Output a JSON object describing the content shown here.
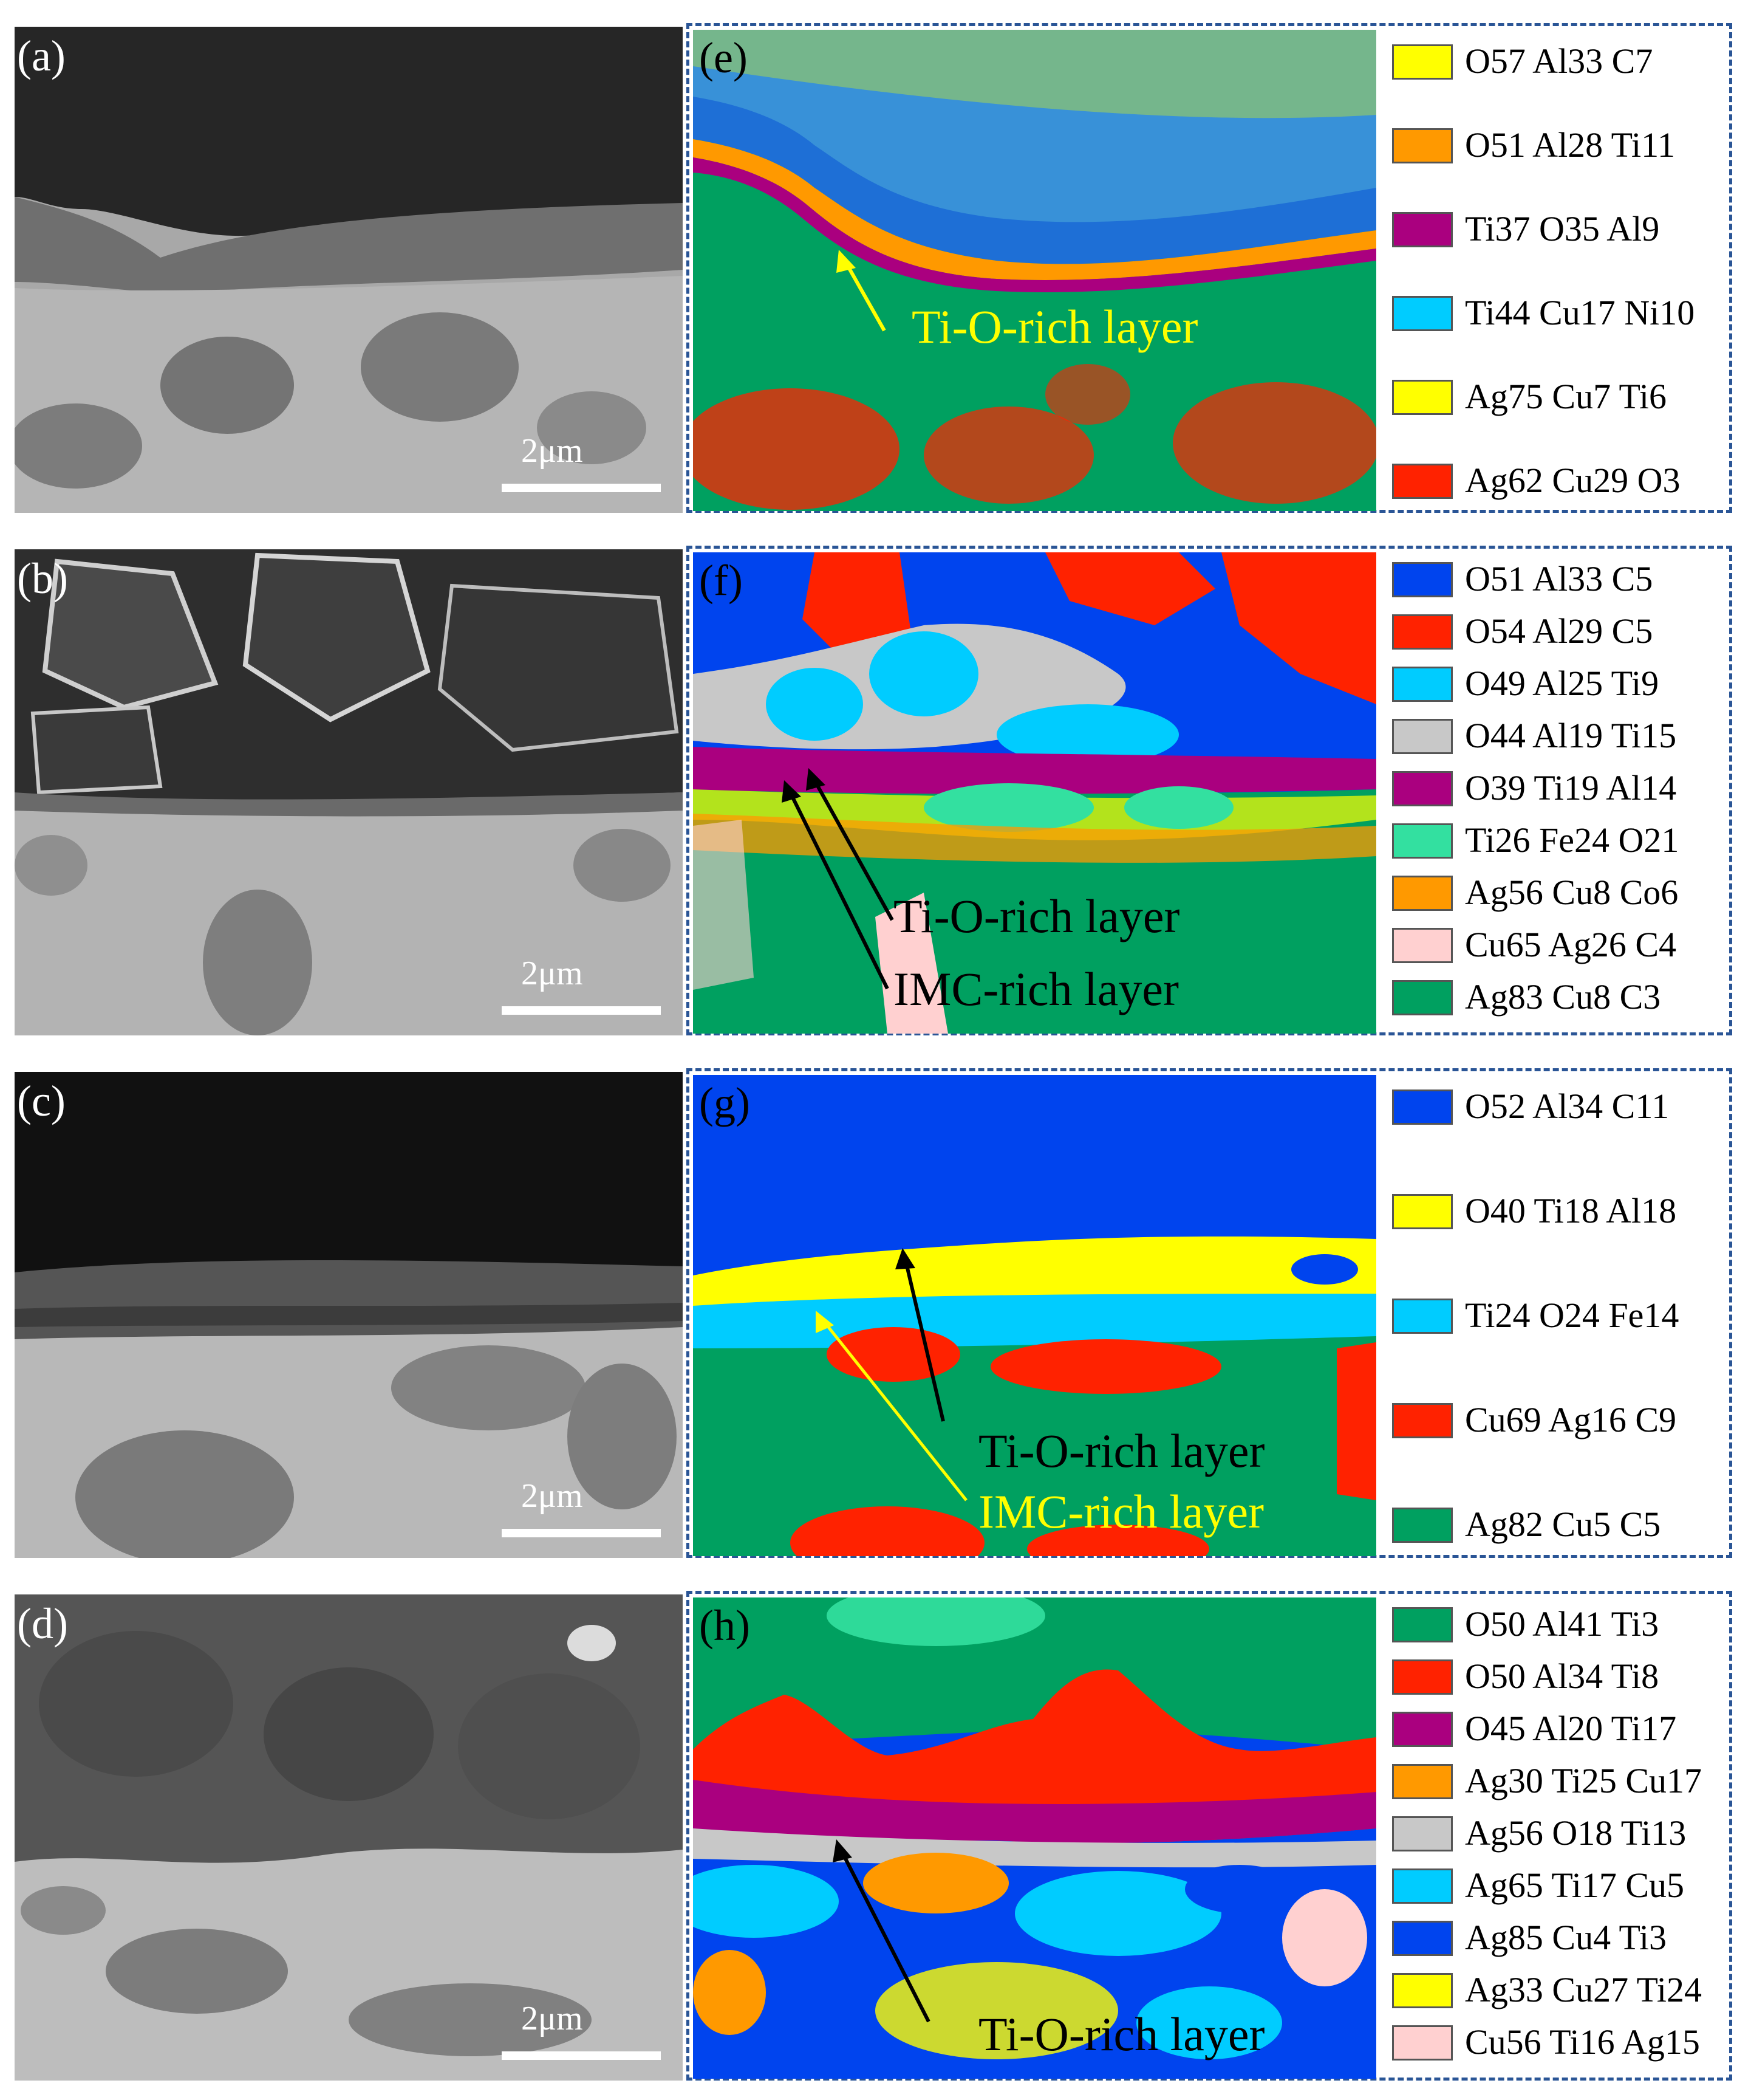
{
  "sem_panels": [
    {
      "letter": "(a)",
      "scale_label": "2μm"
    },
    {
      "letter": "(b)",
      "scale_label": "2μm"
    },
    {
      "letter": "(c)",
      "scale_label": "2μm"
    },
    {
      "letter": "(d)",
      "scale_label": "2μm"
    }
  ],
  "map_panels": [
    {
      "letter": "(e)",
      "annotations": [
        "Ti-O-rich  layer"
      ],
      "legend": [
        {
          "label": "O57 Al33  C7",
          "color": "#ffff00"
        },
        {
          "label": "O51 Al28  Ti11",
          "color": "#ff9900"
        },
        {
          "label": "Ti37  O35  Al9",
          "color": "#aa007f"
        },
        {
          "label": "Ti44  Cu17  Ni10",
          "color": "#00ccff"
        },
        {
          "label": "Ag75  Cu7  Ti6",
          "color": "#ffff00"
        },
        {
          "label": "Ag62  Cu29  O3",
          "color": "#ff2200"
        }
      ]
    },
    {
      "letter": "(f)",
      "annotations": [
        "Ti-O-rich  layer",
        "IMC-rich  layer"
      ],
      "legend": [
        {
          "label": "O51 Al33  C5",
          "color": "#0044ee"
        },
        {
          "label": "O54 Al29  C5",
          "color": "#ff2200"
        },
        {
          "label": "O49 Al25  Ti9",
          "color": "#00ccff"
        },
        {
          "label": "O44 Al19  Ti15",
          "color": "#c8c8c8"
        },
        {
          "label": "O39 Ti19  Al14",
          "color": "#aa007f"
        },
        {
          "label": "Ti26  Fe24  O21",
          "color": "#33e0a0"
        },
        {
          "label": "Ag56  Cu8  Co6",
          "color": "#ff9900"
        },
        {
          "label": "Cu65  Ag26  C4",
          "color": "#ffd0d0"
        },
        {
          "label": "Ag83  Cu8  C3",
          "color": "#00a060"
        }
      ]
    },
    {
      "letter": "(g)",
      "annotations": [
        "Ti-O-rich  layer",
        "IMC-rich  layer"
      ],
      "legend": [
        {
          "label": "O52 Al34  C11",
          "color": "#0044ee"
        },
        {
          "label": "O40 Ti18  Al18",
          "color": "#ffff00"
        },
        {
          "label": "Ti24  O24  Fe14",
          "color": "#00ccff"
        },
        {
          "label": "Cu69  Ag16  C9",
          "color": "#ff2200"
        },
        {
          "label": "Ag82  Cu5  C5",
          "color": "#00a060"
        }
      ]
    },
    {
      "letter": "(h)",
      "annotations": [
        "Ti-O-rich  layer"
      ],
      "legend": [
        {
          "label": "O50 Al41  Ti3",
          "color": "#00a060"
        },
        {
          "label": "O50 Al34  Ti8",
          "color": "#ff2200"
        },
        {
          "label": "O45 Al20  Ti17",
          "color": "#aa007f"
        },
        {
          "label": "Ag30  Ti25  Cu17",
          "color": "#ff9900"
        },
        {
          "label": "Ag56  O18  Ti13",
          "color": "#c8c8c8"
        },
        {
          "label": "Ag65  Ti17  Cu5",
          "color": "#00ccff"
        },
        {
          "label": "Ag85  Cu4  Ti3",
          "color": "#0044ee"
        },
        {
          "label": "Ag33  Cu27  Ti24",
          "color": "#ffff00"
        },
        {
          "label": "Cu56  Ti16  Ag15",
          "color": "#ffd0d0"
        }
      ]
    }
  ]
}
